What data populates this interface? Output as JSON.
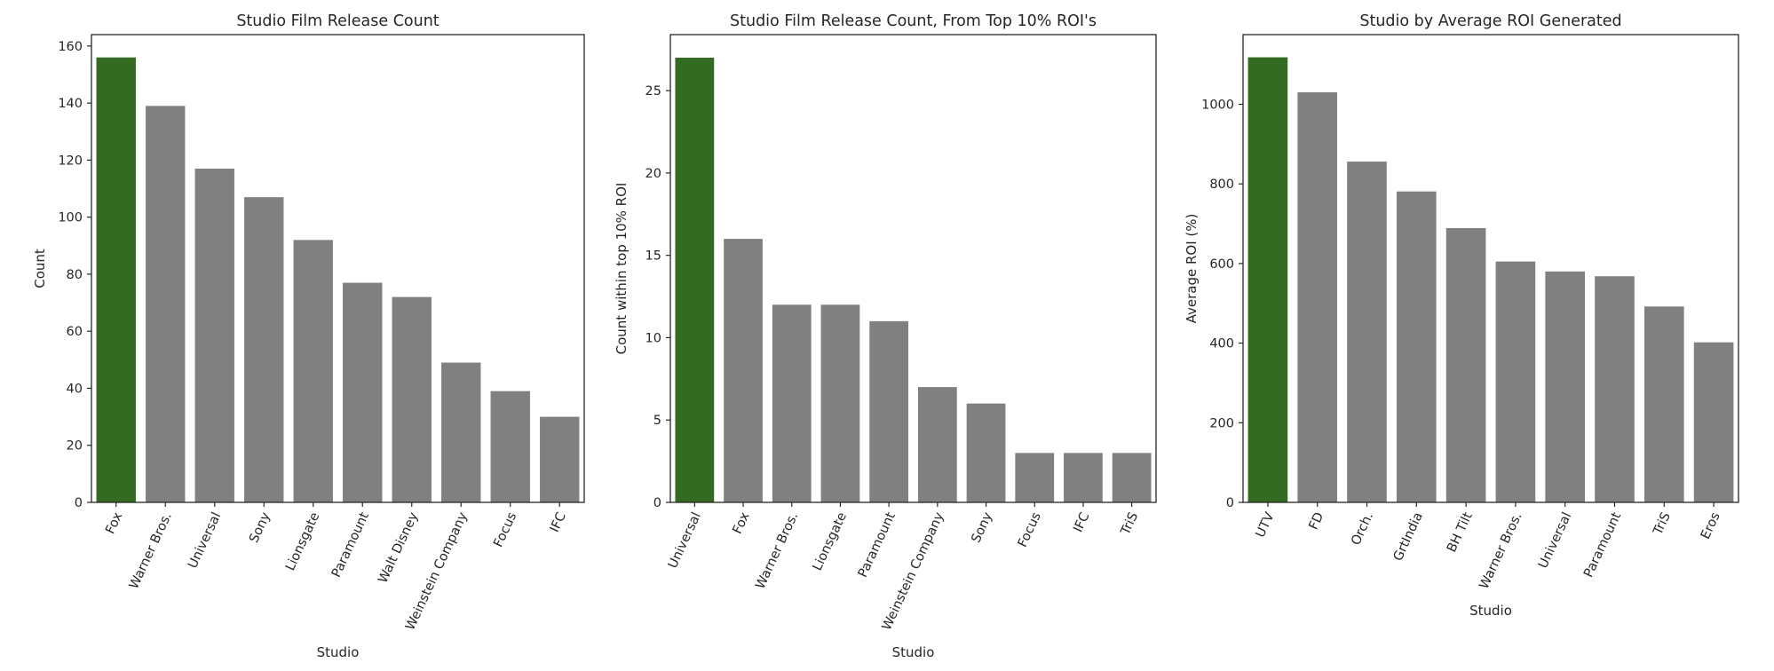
{
  "colors": {
    "highlight": "#336b22",
    "default": "#808080",
    "background": "#ffffff",
    "text": "#262626"
  },
  "chart_data": [
    {
      "type": "bar",
      "title": "Studio Film Release Count",
      "xlabel": "Studio",
      "ylabel": "Count",
      "categories": [
        "Fox",
        "Warner Bros.",
        "Universal",
        "Sony",
        "Lionsgate",
        "Paramount",
        "Walt Disney",
        "Weinstein Company",
        "Focus",
        "IFC"
      ],
      "values": [
        156,
        139,
        117,
        107,
        92,
        77,
        72,
        49,
        39,
        30
      ],
      "highlight_index": 0,
      "ylim": [
        0,
        164
      ],
      "yticks": [
        0,
        20,
        40,
        60,
        80,
        100,
        120,
        140,
        160
      ],
      "grid": false
    },
    {
      "type": "bar",
      "title": "Studio Film Release Count, From Top 10% ROI's",
      "xlabel": "Studio",
      "ylabel": "Count within top 10% ROI",
      "categories": [
        "Universal",
        "Fox",
        "Warner Bros.",
        "Lionsgate",
        "Paramount",
        "Weinstein Company",
        "Sony",
        "Focus",
        "IFC",
        "TriS"
      ],
      "values": [
        27,
        16,
        12,
        12,
        11,
        7,
        6,
        3,
        3,
        3
      ],
      "highlight_index": 0,
      "ylim": [
        0,
        28.4
      ],
      "yticks": [
        0,
        5,
        10,
        15,
        20,
        25
      ],
      "grid": false
    },
    {
      "type": "bar",
      "title": "Studio by Average ROI Generated",
      "xlabel": "Studio",
      "ylabel": "Average ROI (%)",
      "categories": [
        "UTV",
        "FD",
        "Orch.",
        "GrtIndia",
        "BH Tilt",
        "Warner Bros.",
        "Universal",
        "Paramount",
        "TriS",
        "Eros"
      ],
      "values": [
        1118,
        1030,
        856,
        781,
        689,
        605,
        580,
        568,
        492,
        402
      ],
      "highlight_index": 0,
      "ylim": [
        0,
        1175
      ],
      "yticks": [
        0,
        200,
        400,
        600,
        800,
        1000
      ],
      "grid": false
    }
  ]
}
